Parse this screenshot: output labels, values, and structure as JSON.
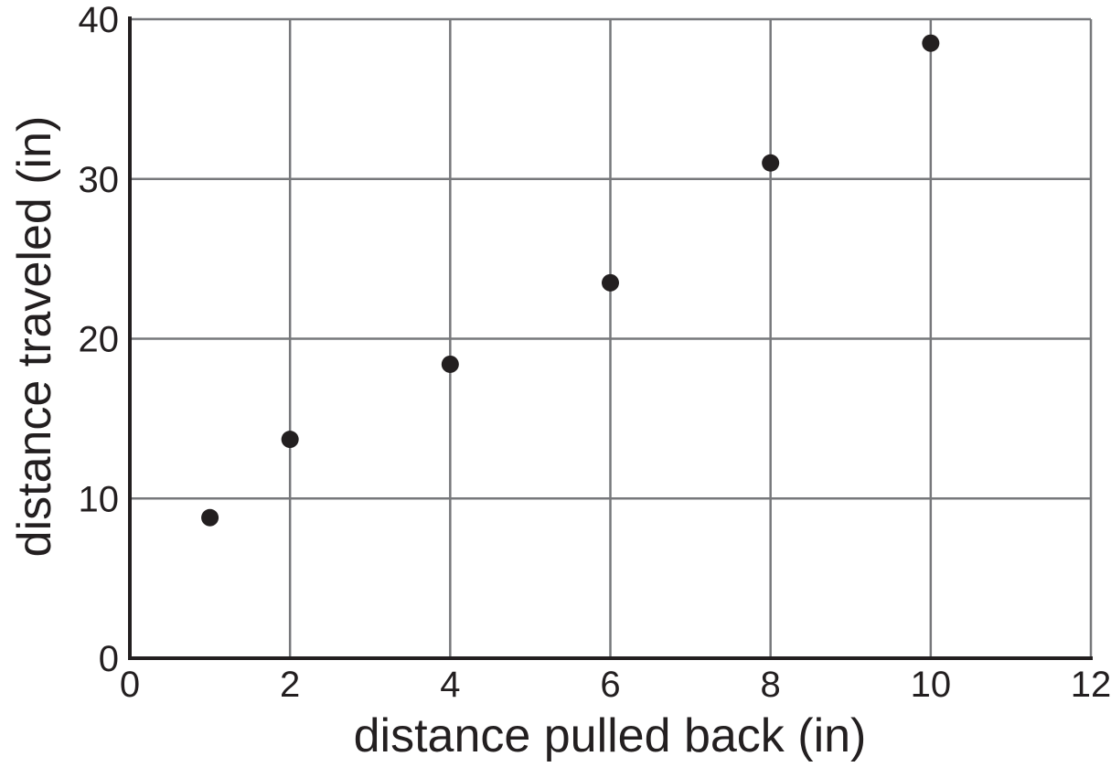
{
  "chart_data": {
    "type": "scatter",
    "title": "",
    "xlabel": "distance pulled back (in)",
    "ylabel": "distance traveled (in)",
    "x": [
      1,
      2,
      4,
      6,
      8,
      10
    ],
    "y": [
      8.8,
      13.7,
      18.4,
      23.5,
      31,
      38.5
    ],
    "xlim": [
      0,
      12
    ],
    "ylim": [
      0,
      40
    ],
    "xticks": [
      0,
      2,
      4,
      6,
      8,
      10,
      12
    ],
    "yticks": [
      0,
      10,
      20,
      30,
      40
    ],
    "grid": true,
    "legend": false,
    "marker": "filled-circle"
  },
  "colors": {
    "background": "#ffffff",
    "gridline": "#77787b",
    "axis": "#231f20",
    "point": "#231f20",
    "text": "#231f20"
  }
}
